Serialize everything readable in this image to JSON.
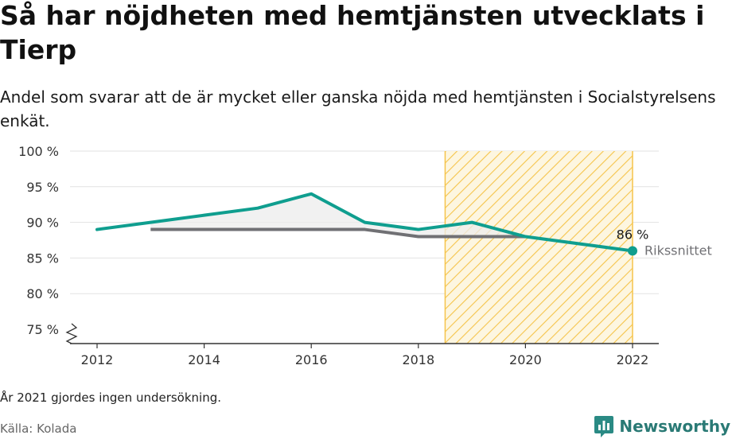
{
  "title": "Så har nöjdheten med hemtjänsten utvecklats i Tierp",
  "subtitle": "Andel som svarar att de är mycket eller ganska nöjda med hemtjänsten i Socialstyrelsens enkät.",
  "note": "År 2021 gjordes ingen undersökning.",
  "source": "Källa: Kolada",
  "brand": "Newsworthy",
  "colors": {
    "main": "#0f9e8f",
    "national": "#707074",
    "hatch": "#f5c44b",
    "grid": "#e2e2e2"
  },
  "chart_data": {
    "type": "line",
    "x_ticks": [
      2012,
      2014,
      2016,
      2018,
      2020,
      2022
    ],
    "y_ticks": [
      75,
      80,
      85,
      90,
      95,
      100
    ],
    "y_tick_labels": [
      "75 %",
      "80 %",
      "85 %",
      "90 %",
      "95 %",
      "100 %"
    ],
    "xlim": [
      2012,
      2022
    ],
    "ylim": [
      75,
      100
    ],
    "highlight_range": [
      2018.5,
      2022
    ],
    "series": [
      {
        "x": [
          2012,
          2013,
          2014,
          2015,
          2016,
          2017,
          2018,
          2019,
          2020,
          2022
        ],
        "values": [
          89,
          90,
          91,
          92,
          94,
          90,
          89,
          90,
          88,
          86
        ],
        "end_label": "86 %"
      },
      {
        "name": "Rikssnittet",
        "x": [
          2013,
          2014,
          2015,
          2016,
          2017,
          2018,
          2019,
          2020
        ],
        "values": [
          89,
          89,
          89,
          89,
          89,
          88,
          88,
          88
        ]
      }
    ]
  }
}
